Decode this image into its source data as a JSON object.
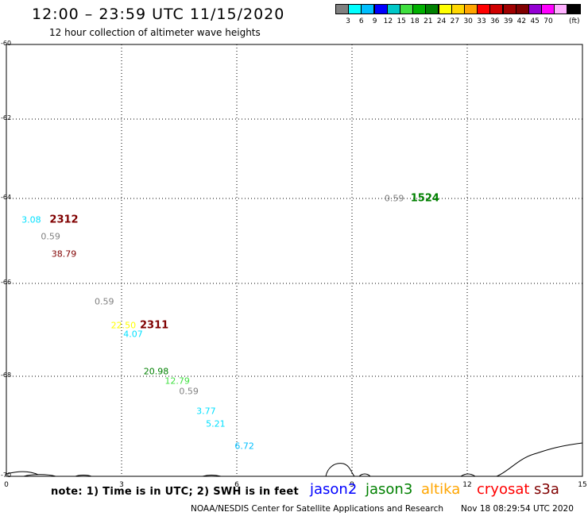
{
  "header": {
    "title": "12:00 – 23:59 UTC 11/15/2020",
    "subtitle": "12 hour collection of altimeter wave heights"
  },
  "color_scale": {
    "colors": [
      "#808080",
      "#00ffff",
      "#00bfff",
      "#0000ff",
      "#00c8c8",
      "#40e040",
      "#00b000",
      "#008000",
      "#ffff00",
      "#ffd700",
      "#ffa500",
      "#ff0000",
      "#d00000",
      "#a00000",
      "#800000",
      "#9400d3",
      "#ff00ff",
      "#ffb0ff",
      "#000000"
    ],
    "labels": [
      "3",
      "6",
      "9",
      "12",
      "15",
      "18",
      "21",
      "24",
      "27",
      "30",
      "33",
      "36",
      "39",
      "42",
      "45",
      "70"
    ],
    "unit": "(ft)"
  },
  "map": {
    "y_ticks": [
      "-60",
      "-62",
      "-64",
      "-66",
      "-68",
      "-70"
    ],
    "x_ticks": [
      "0",
      "3",
      "6",
      "9",
      "12",
      "15"
    ],
    "annotations": [
      {
        "text": "0.59",
        "color": "#808080",
        "lon": 10.1,
        "lat": -64.0
      },
      {
        "text": "1524",
        "color": "#008000",
        "lon": 10.9,
        "lat": -64.0,
        "cycle": true
      },
      {
        "text": "3.08",
        "color": "#00e0ff",
        "lon": 0.65,
        "lat": -64.5
      },
      {
        "text": "2312",
        "color": "#800000",
        "lon": 1.5,
        "lat": -64.5,
        "cycle": true
      },
      {
        "text": "0.59",
        "color": "#808080",
        "lon": 1.15,
        "lat": -64.9
      },
      {
        "text": "38.79",
        "color": "#800000",
        "lon": 1.5,
        "lat": -65.3
      },
      {
        "text": "0.59",
        "color": "#808080",
        "lon": 2.55,
        "lat": -66.4
      },
      {
        "text": "22.50",
        "color": "#ffff00",
        "lon": 3.05,
        "lat": -66.9
      },
      {
        "text": "2311",
        "color": "#800000",
        "lon": 3.85,
        "lat": -66.9,
        "cycle": true
      },
      {
        "text": "4.07",
        "color": "#00e0ff",
        "lon": 3.3,
        "lat": -67.1
      },
      {
        "text": "20.98",
        "color": "#008000",
        "lon": 3.9,
        "lat": -67.9
      },
      {
        "text": "12.79",
        "color": "#40e040",
        "lon": 4.45,
        "lat": -68.1
      },
      {
        "text": "0.59",
        "color": "#808080",
        "lon": 4.75,
        "lat": -68.3
      },
      {
        "text": "3.77",
        "color": "#00e0ff",
        "lon": 5.2,
        "lat": -68.7
      },
      {
        "text": "5.21",
        "color": "#00e0ff",
        "lon": 5.45,
        "lat": -68.95
      },
      {
        "text": "6.72",
        "color": "#00bfff",
        "lon": 6.2,
        "lat": -69.4
      }
    ]
  },
  "legend": {
    "note": "note: 1) Time is in UTC; 2) SWH is in feet",
    "satellites": [
      {
        "name": "jason2",
        "color": "#0000ff"
      },
      {
        "name": "jason3",
        "color": "#008000"
      },
      {
        "name": "altika",
        "color": "#ffa500"
      },
      {
        "name": "cryosat",
        "color": "#ff0000"
      },
      {
        "name": "s3a",
        "color": "#800000"
      }
    ]
  },
  "footer": {
    "credit": "NOAA/NESDIS Center for Satellite Applications and Research",
    "timestamp": "Nov 18 08:29:54 UTC 2020"
  }
}
